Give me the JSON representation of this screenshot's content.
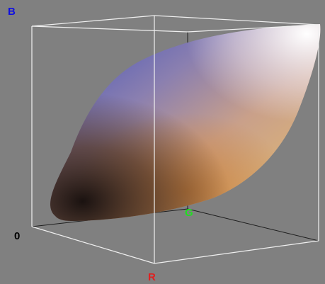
{
  "axes": {
    "b": "B",
    "g": "G",
    "r": "R",
    "origin": "0"
  }
}
